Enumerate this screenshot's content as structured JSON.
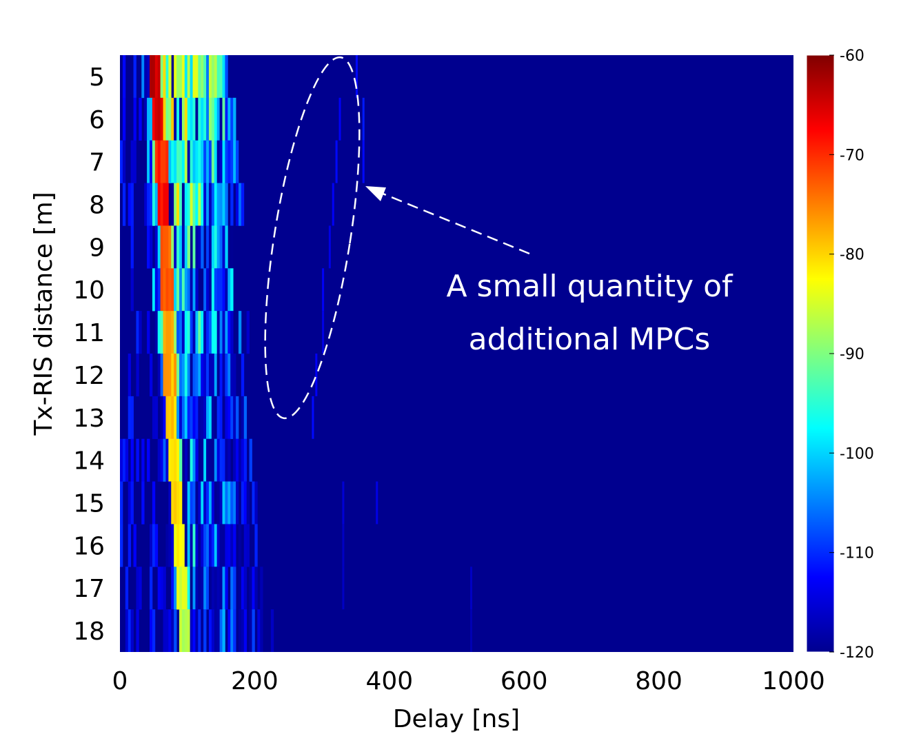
{
  "chart_data": {
    "type": "heatmap",
    "title": "",
    "xlabel": "Delay [ns]",
    "ylabel": "Tx-RIS distance [m]",
    "xlim": [
      0,
      1000
    ],
    "x_ticks": [
      "0",
      "200",
      "400",
      "600",
      "800",
      "1000"
    ],
    "y_categories": [
      "5",
      "6",
      "7",
      "8",
      "9",
      "10",
      "11",
      "12",
      "13",
      "14",
      "15",
      "16",
      "17",
      "18"
    ],
    "colorbar": {
      "range": [
        -120,
        -60
      ],
      "ticks": [
        "-60",
        "-70",
        "-80",
        "-90",
        "-100",
        "-110",
        "-120"
      ],
      "colormap": "jet"
    },
    "background_value": -120,
    "dominant_path": {
      "description_values": "peak delay [ns] per distance row, peak power [dB]",
      "peak_delay": [
        50,
        55,
        60,
        62,
        65,
        68,
        70,
        72,
        75,
        78,
        82,
        86,
        90,
        95
      ],
      "peak_power": [
        -66,
        -68,
        -72,
        -70,
        -76,
        -74,
        -78,
        -80,
        -82,
        -84,
        -83,
        -85,
        -87,
        -88
      ],
      "spread_ns": [
        110,
        115,
        115,
        120,
        100,
        100,
        120,
        110,
        110,
        115,
        120,
        120,
        120,
        130
      ]
    },
    "additional_mpcs": [
      {
        "row": "5",
        "delay": 350,
        "power": -112
      },
      {
        "row": "6",
        "delay": 325,
        "power": -113
      },
      {
        "row": "6",
        "delay": 360,
        "power": -111
      },
      {
        "row": "7",
        "delay": 320,
        "power": -112
      },
      {
        "row": "7",
        "delay": 360,
        "power": -112
      },
      {
        "row": "8",
        "delay": 315,
        "power": -113
      },
      {
        "row": "9",
        "delay": 310,
        "power": -114
      },
      {
        "row": "10",
        "delay": 300,
        "power": -113
      },
      {
        "row": "11",
        "delay": 300,
        "power": -114
      },
      {
        "row": "12",
        "delay": 290,
        "power": -113
      },
      {
        "row": "13",
        "delay": 285,
        "power": -112
      },
      {
        "row": "15",
        "delay": 380,
        "power": -114
      },
      {
        "row": "15",
        "delay": 330,
        "power": -115
      },
      {
        "row": "16",
        "delay": 330,
        "power": -116
      },
      {
        "row": "17",
        "delay": 330,
        "power": -116
      },
      {
        "row": "17",
        "delay": 520,
        "power": -116
      },
      {
        "row": "18",
        "delay": 520,
        "power": -117
      }
    ],
    "annotation": {
      "line1": "A small quantity of",
      "line2": "additional MPCs"
    }
  }
}
